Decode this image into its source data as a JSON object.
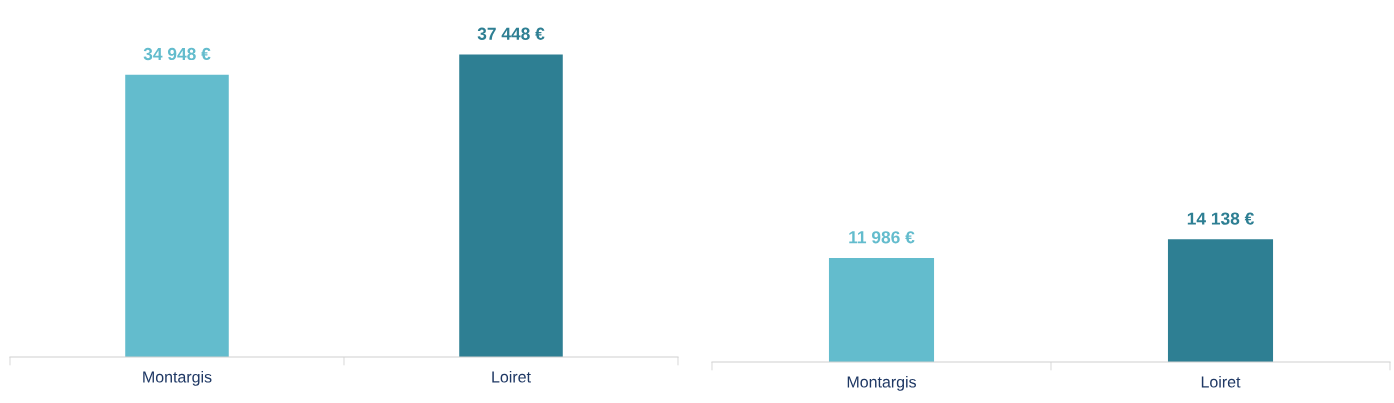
{
  "chart_data": [
    {
      "type": "bar",
      "categories": [
        "Montargis",
        "Loiret"
      ],
      "values": [
        34948,
        37448
      ],
      "colors": [
        "#63bccd",
        "#2e7f93"
      ],
      "value_labels": [
        "34 948 €",
        "37 448 €"
      ]
    },
    {
      "type": "bar",
      "categories": [
        "Montargis",
        "Loiret"
      ],
      "values": [
        11986,
        14138
      ],
      "colors": [
        "#63bccd",
        "#2e7f93"
      ],
      "value_labels": [
        "11 986 €",
        "14 138 €"
      ]
    }
  ]
}
